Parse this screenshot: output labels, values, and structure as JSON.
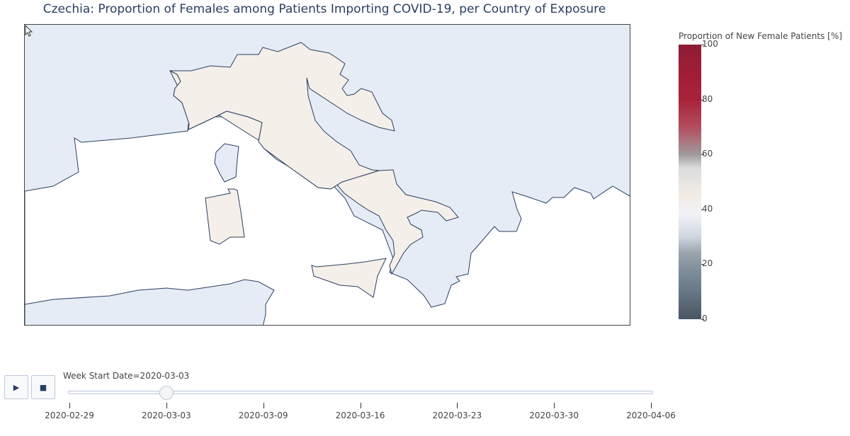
{
  "title": "Czechia: Proportion of Females among Patients Importing COVID-19, per Country of Exposure",
  "map": {
    "sea_color": "#e5ecf6",
    "land_color": "#ffffff",
    "highlight_color": "#f5efea",
    "border_color": "#2a3f5f",
    "highlighted_country": "Italy"
  },
  "colorbar": {
    "title": "Proportion of New Female Patients [%]",
    "range": [
      0,
      100
    ],
    "ticks": [
      "100",
      "80",
      "60",
      "40",
      "20",
      "0"
    ]
  },
  "animation": {
    "play_icon": "play-icon",
    "stop_icon": "stop-icon",
    "current_label": "Week Start Date=2020-03-03",
    "current_value": "2020-03-03",
    "dates": [
      "2020-02-29",
      "2020-03-03",
      "2020-03-09",
      "2020-03-16",
      "2020-03-23",
      "2020-03-30",
      "2020-04-06"
    ]
  }
}
